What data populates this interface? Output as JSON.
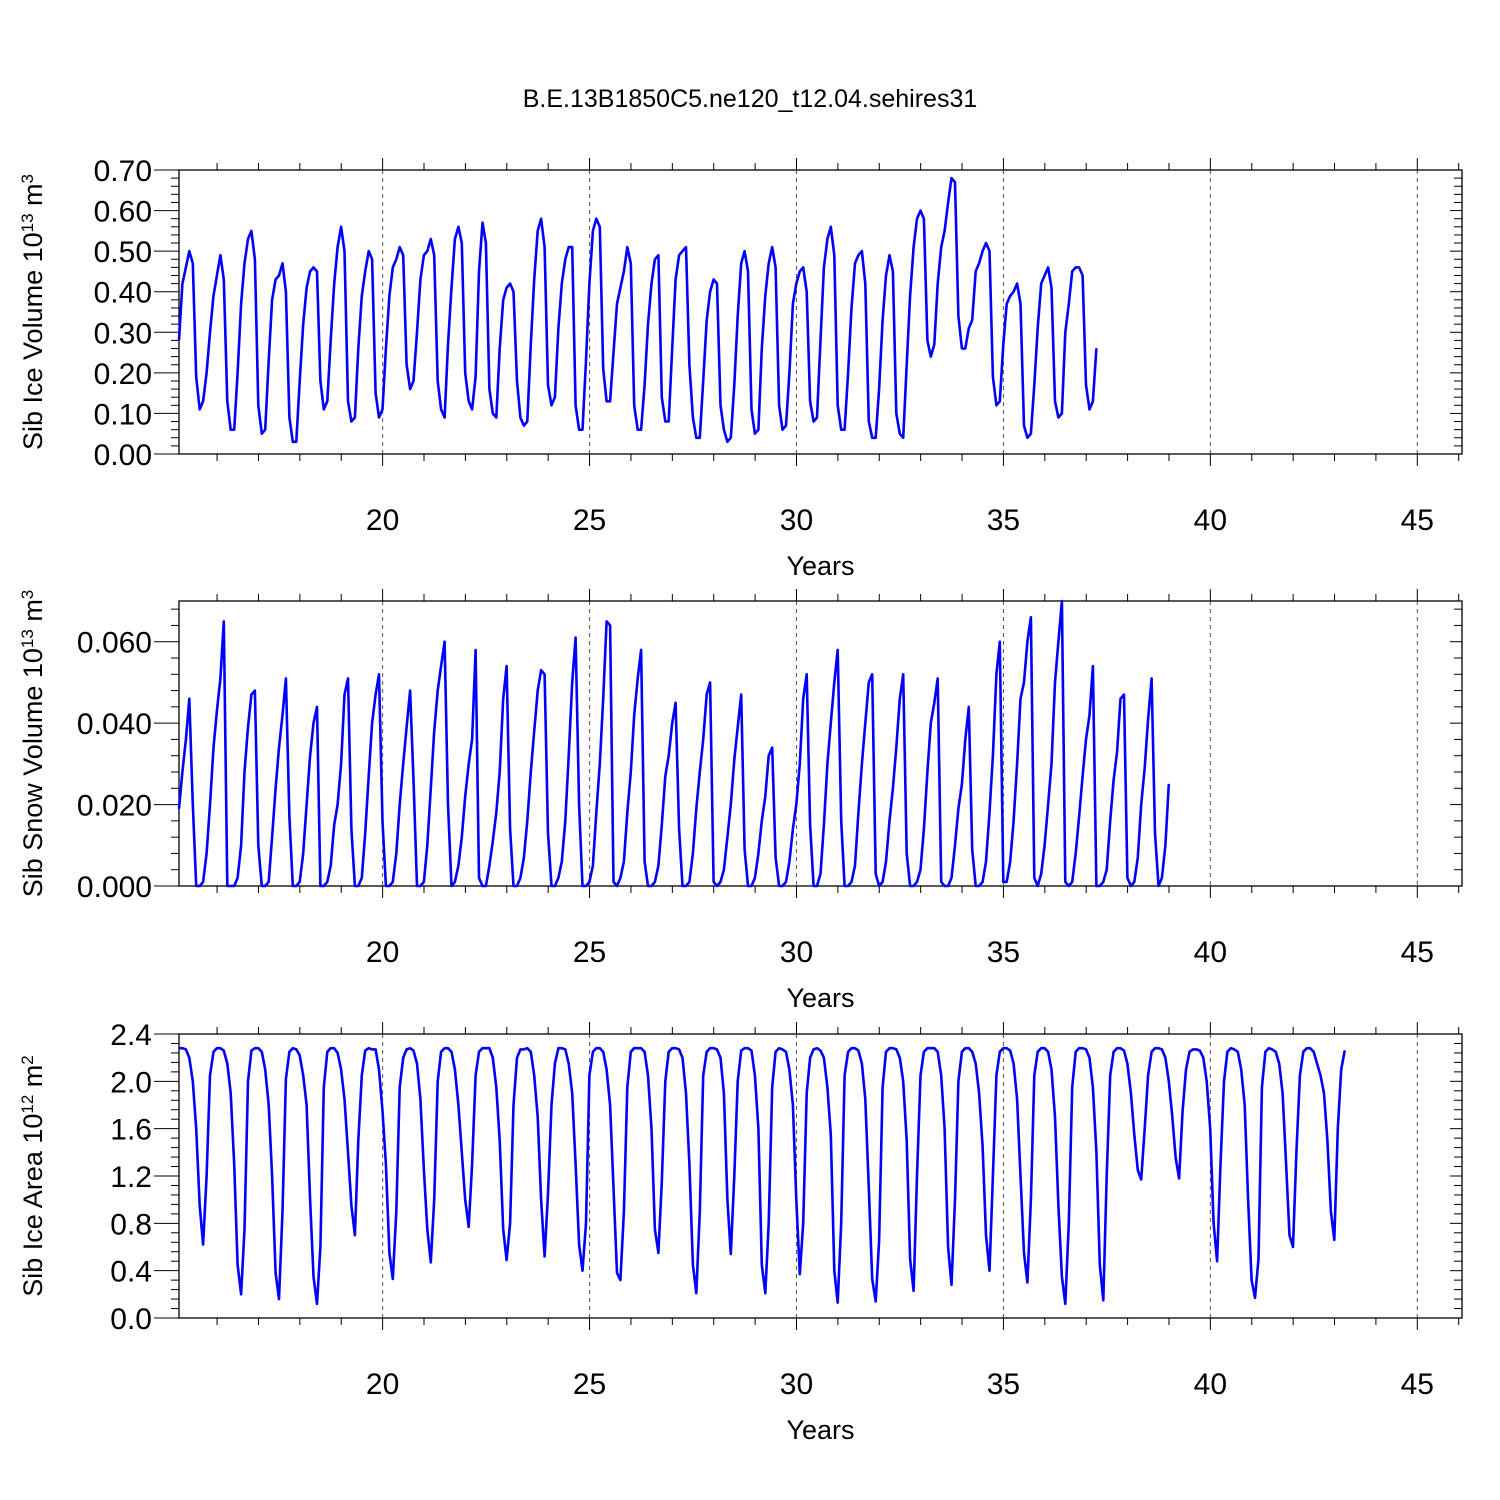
{
  "title": "B.E.13B1850C5.ne120_t12.04.sehires31",
  "colors": {
    "line": "#0000ff",
    "axis": "#000000",
    "grid": "#555555"
  },
  "chart_data": [
    {
      "type": "line",
      "title": "B.E.13B1850C5.ne120_t12.04.sehires31",
      "xlabel": "Years",
      "ylabel": "Sib Ice Volume 10",
      "ylabel_exp": "13",
      "ylabel_unit": " m",
      "ylabel_unit_exp": "3",
      "xlim": [
        15.08,
        46.08
      ],
      "ylim": [
        0.0,
        0.7
      ],
      "x_ticks": [
        20,
        25,
        30,
        35,
        40,
        45
      ],
      "y_ticks": [
        "0.00",
        "0.10",
        "0.20",
        "0.30",
        "0.40",
        "0.50",
        "0.60",
        "0.70"
      ],
      "grid": "dashed vertical at major x ticks",
      "series": [
        {
          "x_start": 15.08,
          "x_step": 0.08333,
          "values": [
            0.28,
            0.42,
            0.46,
            0.5,
            0.47,
            0.19,
            0.11,
            0.13,
            0.2,
            0.3,
            0.39,
            0.44,
            0.49,
            0.43,
            0.13,
            0.06,
            0.06,
            0.2,
            0.37,
            0.47,
            0.53,
            0.55,
            0.48,
            0.12,
            0.05,
            0.06,
            0.23,
            0.38,
            0.43,
            0.44,
            0.47,
            0.4,
            0.09,
            0.03,
            0.03,
            0.18,
            0.32,
            0.41,
            0.45,
            0.46,
            0.45,
            0.18,
            0.11,
            0.13,
            0.28,
            0.42,
            0.51,
            0.56,
            0.5,
            0.13,
            0.08,
            0.09,
            0.26,
            0.39,
            0.45,
            0.5,
            0.48,
            0.15,
            0.09,
            0.11,
            0.26,
            0.39,
            0.46,
            0.48,
            0.51,
            0.49,
            0.22,
            0.16,
            0.18,
            0.3,
            0.43,
            0.49,
            0.5,
            0.53,
            0.49,
            0.18,
            0.11,
            0.09,
            0.27,
            0.41,
            0.53,
            0.56,
            0.52,
            0.2,
            0.13,
            0.11,
            0.19,
            0.45,
            0.57,
            0.52,
            0.16,
            0.1,
            0.09,
            0.26,
            0.38,
            0.41,
            0.42,
            0.4,
            0.18,
            0.09,
            0.07,
            0.08,
            0.27,
            0.43,
            0.55,
            0.58,
            0.51,
            0.17,
            0.12,
            0.14,
            0.31,
            0.42,
            0.48,
            0.51,
            0.51,
            0.12,
            0.06,
            0.06,
            0.23,
            0.42,
            0.55,
            0.58,
            0.56,
            0.21,
            0.13,
            0.13,
            0.25,
            0.37,
            0.41,
            0.45,
            0.51,
            0.47,
            0.12,
            0.06,
            0.06,
            0.17,
            0.32,
            0.42,
            0.48,
            0.49,
            0.14,
            0.08,
            0.08,
            0.26,
            0.43,
            0.49,
            0.5,
            0.51,
            0.22,
            0.09,
            0.04,
            0.04,
            0.18,
            0.33,
            0.4,
            0.43,
            0.42,
            0.12,
            0.06,
            0.03,
            0.04,
            0.17,
            0.34,
            0.47,
            0.5,
            0.45,
            0.11,
            0.05,
            0.06,
            0.26,
            0.39,
            0.47,
            0.51,
            0.46,
            0.12,
            0.06,
            0.07,
            0.2,
            0.37,
            0.42,
            0.45,
            0.46,
            0.4,
            0.13,
            0.08,
            0.09,
            0.28,
            0.46,
            0.53,
            0.56,
            0.49,
            0.12,
            0.06,
            0.06,
            0.2,
            0.36,
            0.47,
            0.49,
            0.5,
            0.42,
            0.08,
            0.04,
            0.04,
            0.16,
            0.33,
            0.44,
            0.49,
            0.45,
            0.1,
            0.05,
            0.04,
            0.22,
            0.39,
            0.51,
            0.58,
            0.6,
            0.58,
            0.28,
            0.24,
            0.27,
            0.42,
            0.51,
            0.55,
            0.62,
            0.68,
            0.67,
            0.34,
            0.26,
            0.26,
            0.31,
            0.33,
            0.45,
            0.47,
            0.5,
            0.52,
            0.5,
            0.19,
            0.12,
            0.13,
            0.27,
            0.37,
            0.39,
            0.4,
            0.42,
            0.37,
            0.07,
            0.04,
            0.05,
            0.17,
            0.31,
            0.42,
            0.44,
            0.46,
            0.41,
            0.13,
            0.09,
            0.1,
            0.3,
            0.37,
            0.45,
            0.46,
            0.46,
            0.44,
            0.17,
            0.11,
            0.13,
            0.26
          ]
        }
      ]
    },
    {
      "type": "line",
      "xlabel": "Years",
      "ylabel": "Sib Snow Volume 10",
      "ylabel_exp": "13",
      "ylabel_unit": " m",
      "ylabel_unit_exp": "3",
      "xlim": [
        15.08,
        46.08
      ],
      "ylim": [
        0.0,
        0.07
      ],
      "x_ticks": [
        20,
        25,
        30,
        35,
        40,
        45
      ],
      "y_ticks": [
        "0.000",
        "0.020",
        "0.040",
        "0.060"
      ],
      "grid": "dashed vertical at major x ticks",
      "series": [
        {
          "x_start": 15.08,
          "x_step": 0.08333,
          "values": [
            0.019,
            0.028,
            0.036,
            0.046,
            0.02,
            0.0,
            0.0,
            0.001,
            0.008,
            0.02,
            0.034,
            0.043,
            0.051,
            0.065,
            0.0,
            0.0,
            0.0,
            0.002,
            0.01,
            0.028,
            0.039,
            0.047,
            0.048,
            0.01,
            0.0,
            0.0,
            0.001,
            0.012,
            0.024,
            0.034,
            0.042,
            0.051,
            0.017,
            0.0,
            0.0,
            0.001,
            0.008,
            0.02,
            0.032,
            0.04,
            0.044,
            0.0,
            0.0,
            0.001,
            0.005,
            0.015,
            0.02,
            0.03,
            0.047,
            0.051,
            0.014,
            0.0,
            0.0,
            0.002,
            0.013,
            0.027,
            0.04,
            0.047,
            0.052,
            0.016,
            0.0,
            0.0,
            0.001,
            0.008,
            0.02,
            0.03,
            0.039,
            0.048,
            0.026,
            0.0,
            0.0,
            0.001,
            0.01,
            0.024,
            0.038,
            0.048,
            0.054,
            0.06,
            0.02,
            0.0,
            0.001,
            0.005,
            0.012,
            0.022,
            0.03,
            0.036,
            0.058,
            0.002,
            0.0,
            0.0,
            0.005,
            0.011,
            0.018,
            0.028,
            0.046,
            0.054,
            0.014,
            0.0,
            0.0,
            0.002,
            0.007,
            0.016,
            0.028,
            0.038,
            0.048,
            0.053,
            0.052,
            0.013,
            0.0,
            0.0,
            0.002,
            0.006,
            0.016,
            0.032,
            0.05,
            0.061,
            0.02,
            0.0,
            0.0,
            0.001,
            0.005,
            0.018,
            0.03,
            0.046,
            0.065,
            0.064,
            0.001,
            0.0,
            0.002,
            0.006,
            0.018,
            0.028,
            0.042,
            0.051,
            0.058,
            0.006,
            0.0,
            0.0,
            0.001,
            0.005,
            0.015,
            0.027,
            0.032,
            0.04,
            0.045,
            0.014,
            0.0,
            0.0,
            0.001,
            0.008,
            0.019,
            0.028,
            0.036,
            0.047,
            0.05,
            0.001,
            0.0,
            0.001,
            0.004,
            0.012,
            0.02,
            0.031,
            0.039,
            0.047,
            0.009,
            0.0,
            0.0,
            0.002,
            0.008,
            0.016,
            0.022,
            0.032,
            0.034,
            0.007,
            0.0,
            0.0,
            0.001,
            0.006,
            0.014,
            0.02,
            0.03,
            0.046,
            0.052,
            0.015,
            0.0,
            0.0,
            0.003,
            0.015,
            0.03,
            0.04,
            0.05,
            0.058,
            0.016,
            0.0,
            0.0,
            0.001,
            0.005,
            0.018,
            0.03,
            0.04,
            0.05,
            0.052,
            0.003,
            0.0,
            0.001,
            0.006,
            0.016,
            0.024,
            0.034,
            0.046,
            0.052,
            0.008,
            0.0,
            0.0,
            0.001,
            0.004,
            0.014,
            0.028,
            0.04,
            0.045,
            0.051,
            0.001,
            0.0,
            0.0,
            0.002,
            0.01,
            0.019,
            0.025,
            0.036,
            0.044,
            0.009,
            0.0,
            0.0,
            0.001,
            0.006,
            0.018,
            0.032,
            0.052,
            0.06,
            0.001,
            0.001,
            0.006,
            0.016,
            0.03,
            0.046,
            0.05,
            0.06,
            0.066,
            0.002,
            0.0,
            0.003,
            0.01,
            0.02,
            0.03,
            0.05,
            0.06,
            0.07,
            0.001,
            0.0,
            0.001,
            0.008,
            0.017,
            0.027,
            0.036,
            0.042,
            0.054,
            0.0,
            0.0,
            0.001,
            0.004,
            0.016,
            0.026,
            0.033,
            0.046,
            0.047,
            0.002,
            0.0,
            0.001,
            0.007,
            0.02,
            0.029,
            0.041,
            0.051,
            0.013,
            0.0,
            0.002,
            0.01,
            0.025
          ]
        }
      ]
    },
    {
      "type": "line",
      "xlabel": "Years",
      "ylabel": "Sib Ice Area 10",
      "ylabel_exp": "12",
      "ylabel_unit": " m",
      "ylabel_unit_exp": "2",
      "xlim": [
        15.08,
        46.08
      ],
      "ylim": [
        0.0,
        2.4
      ],
      "x_ticks": [
        20,
        25,
        30,
        35,
        40,
        45
      ],
      "y_ticks": [
        "0.0",
        "0.4",
        "0.8",
        "1.2",
        "1.6",
        "2.0",
        "2.4"
      ],
      "grid": "dashed vertical at major x ticks",
      "series": [
        {
          "x_start": 15.08,
          "x_step": 0.08333,
          "values": [
            2.28,
            2.28,
            2.27,
            2.2,
            2.0,
            1.6,
            0.95,
            0.62,
            1.2,
            2.05,
            2.25,
            2.28,
            2.28,
            2.26,
            2.15,
            1.9,
            1.3,
            0.45,
            0.2,
            0.75,
            2.0,
            2.26,
            2.28,
            2.28,
            2.25,
            2.1,
            1.8,
            1.2,
            0.38,
            0.16,
            0.9,
            2.02,
            2.25,
            2.28,
            2.27,
            2.22,
            2.05,
            1.8,
            1.0,
            0.35,
            0.12,
            0.6,
            1.95,
            2.25,
            2.28,
            2.28,
            2.24,
            2.1,
            1.85,
            1.4,
            0.95,
            0.7,
            1.5,
            2.05,
            2.26,
            2.28,
            2.27,
            2.27,
            2.1,
            1.75,
            1.3,
            0.55,
            0.33,
            0.9,
            1.95,
            2.2,
            2.27,
            2.28,
            2.26,
            2.15,
            1.85,
            1.25,
            0.75,
            0.47,
            1.0,
            2.0,
            2.25,
            2.28,
            2.28,
            2.25,
            2.1,
            1.8,
            1.4,
            1.0,
            0.77,
            1.3,
            2.05,
            2.25,
            2.28,
            2.28,
            2.28,
            2.2,
            1.95,
            1.5,
            0.75,
            0.49,
            0.8,
            1.8,
            2.2,
            2.27,
            2.27,
            2.28,
            2.25,
            2.05,
            1.7,
            1.0,
            0.52,
            1.05,
            1.8,
            2.15,
            2.28,
            2.28,
            2.27,
            2.15,
            1.9,
            1.3,
            0.62,
            0.4,
            0.8,
            2.05,
            2.25,
            2.28,
            2.28,
            2.25,
            2.1,
            1.8,
            1.1,
            0.38,
            0.32,
            0.9,
            1.95,
            2.25,
            2.28,
            2.28,
            2.28,
            2.25,
            2.05,
            1.6,
            0.75,
            0.55,
            1.15,
            2.0,
            2.25,
            2.28,
            2.28,
            2.27,
            2.2,
            1.9,
            1.3,
            0.45,
            0.21,
            0.9,
            2.05,
            2.25,
            2.28,
            2.28,
            2.27,
            2.2,
            1.9,
            1.0,
            0.54,
            1.2,
            2.0,
            2.26,
            2.28,
            2.28,
            2.26,
            2.05,
            1.6,
            0.45,
            0.21,
            0.8,
            1.95,
            2.25,
            2.28,
            2.27,
            2.25,
            2.1,
            1.8,
            1.0,
            0.37,
            0.8,
            1.9,
            2.2,
            2.27,
            2.28,
            2.26,
            2.2,
            1.95,
            1.55,
            0.4,
            0.13,
            0.8,
            2.05,
            2.25,
            2.28,
            2.28,
            2.26,
            2.15,
            1.85,
            1.1,
            0.33,
            0.14,
            0.65,
            1.95,
            2.25,
            2.28,
            2.28,
            2.27,
            2.2,
            2.0,
            1.5,
            0.5,
            0.23,
            1.2,
            2.05,
            2.25,
            2.28,
            2.28,
            2.28,
            2.25,
            2.05,
            1.6,
            0.6,
            0.28,
            1.0,
            2.0,
            2.25,
            2.28,
            2.28,
            2.25,
            2.15,
            1.9,
            1.45,
            0.7,
            0.4,
            1.2,
            2.05,
            2.25,
            2.28,
            2.28,
            2.26,
            2.15,
            1.85,
            1.2,
            0.55,
            0.3,
            1.0,
            2.05,
            2.25,
            2.28,
            2.28,
            2.25,
            2.1,
            1.7,
            0.95,
            0.35,
            0.12,
            0.8,
            1.95,
            2.25,
            2.28,
            2.28,
            2.27,
            2.2,
            1.95,
            1.4,
            0.45,
            0.15,
            1.2,
            2.05,
            2.25,
            2.28,
            2.28,
            2.26,
            2.15,
            1.9,
            1.55,
            1.25,
            1.17,
            1.6,
            2.05,
            2.25,
            2.28,
            2.28,
            2.27,
            2.2,
            2.0,
            1.7,
            1.35,
            1.18,
            1.75,
            2.1,
            2.25,
            2.27,
            2.27,
            2.26,
            2.2,
            2.0,
            1.6,
            0.8,
            0.48,
            1.3,
            2.0,
            2.25,
            2.28,
            2.27,
            2.25,
            2.1,
            1.8,
            1.0,
            0.32,
            0.17,
            0.5,
            1.95,
            2.25,
            2.28,
            2.27,
            2.25,
            2.15,
            1.9,
            1.3,
            0.7,
            0.6,
            1.4,
            2.05,
            2.25,
            2.28,
            2.28,
            2.25,
            2.15,
            2.05,
            1.9,
            1.5,
            0.9,
            0.66,
            1.6,
            2.1,
            2.26
          ]
        }
      ]
    }
  ]
}
